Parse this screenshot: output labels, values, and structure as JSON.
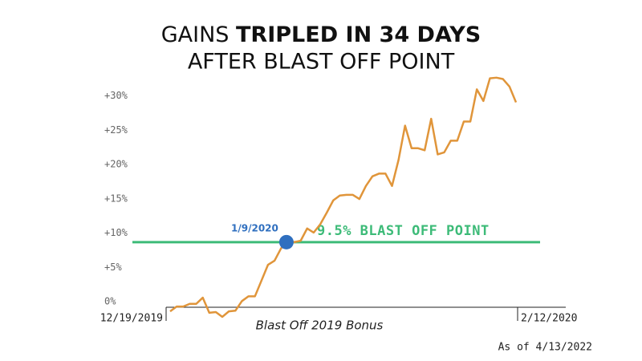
{
  "chart_data": {
    "type": "line",
    "title": {
      "plain": "GAINS ",
      "bold": "TRIPLED IN 34 DAYS",
      "line2": "AFTER BLAST OFF POINT"
    },
    "xlabel": "Blast Off 2019 Bonus",
    "footnote": "As of 4/13/2022",
    "categories": [
      "12/19/2019",
      null,
      null,
      null,
      null,
      null,
      null,
      null,
      null,
      null,
      null,
      null,
      null,
      null,
      null,
      null,
      null,
      null,
      null,
      null,
      null,
      null,
      null,
      null,
      null,
      null,
      null,
      null,
      null,
      null,
      null,
      null,
      null,
      null,
      null,
      null,
      null,
      null,
      null,
      null,
      null,
      null,
      null,
      null,
      null,
      null,
      null,
      null,
      null,
      null,
      null,
      null,
      null,
      "2/12/2020"
    ],
    "series": [
      {
        "name": "Gains",
        "color": "#e0953a",
        "values": [
          -0.6,
          0.1,
          0.1,
          0.5,
          0.5,
          1.4,
          -0.8,
          -0.7,
          -1.4,
          -0.6,
          -0.5,
          0.9,
          1.6,
          1.6,
          3.9,
          6.2,
          6.8,
          8.6,
          9.7,
          9.5,
          9.7,
          11.5,
          10.9,
          12.1,
          13.8,
          15.6,
          16.3,
          16.4,
          16.4,
          15.8,
          17.7,
          19.1,
          19.5,
          19.5,
          17.7,
          21.5,
          26.5,
          23.2,
          23.2,
          22.9,
          27.5,
          22.3,
          22.6,
          24.3,
          24.3,
          27.1,
          27.1,
          31.8,
          30.1,
          33.4,
          33.5,
          33.3,
          32.2,
          29.9
        ]
      }
    ],
    "ylim": [
      0,
      35
    ],
    "yticks": [
      {
        "value": 0,
        "label": "0%"
      },
      {
        "value": 5,
        "label": "+5%"
      },
      {
        "value": 10,
        "label": "+10%"
      },
      {
        "value": 15,
        "label": "+15%"
      },
      {
        "value": 20,
        "label": "+20%"
      },
      {
        "value": 25,
        "label": "+25%"
      },
      {
        "value": 30,
        "label": "+30%"
      }
    ],
    "reference_line": {
      "value": 9.5,
      "label": "9.5% BLAST OFF POINT",
      "color": "#3dbb78"
    },
    "marker": {
      "label": "1/9/2020",
      "value": 9.5,
      "color": "#2f6fbf"
    }
  }
}
